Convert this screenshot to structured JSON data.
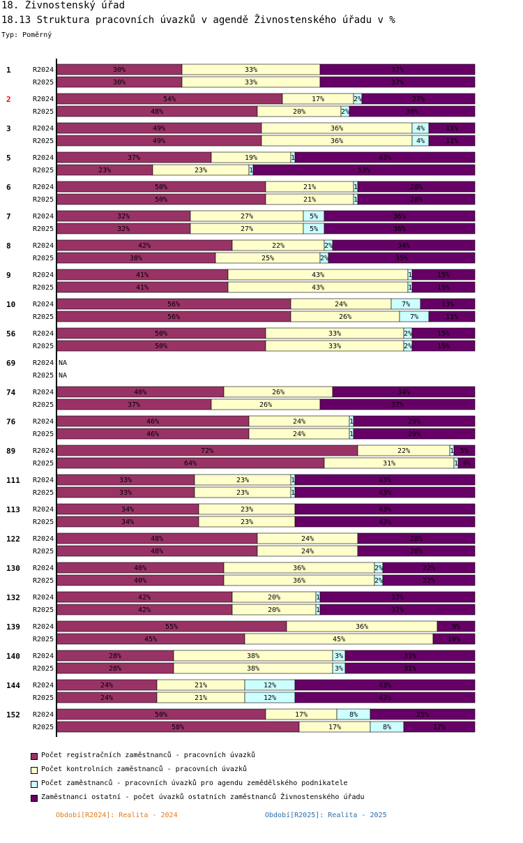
{
  "header": {
    "title": "18. Živnostenský úřad",
    "subtitle": "18.13 Struktura pracovních úvazků v agendě Živnostenského úřadu v %",
    "type_label": "Typ: Poměrný"
  },
  "colors": {
    "registracni": "#993366",
    "kontrolni": "#ffffcc",
    "zemedelsky": "#ccffff",
    "ostatni": "#660066",
    "highlight_group": "#ff0000",
    "period1": "#e07b1a",
    "period2": "#2a6ea8"
  },
  "legend": [
    {
      "label": "Počet registračních zaměstnanců - pracovních úvazků"
    },
    {
      "label": "Počet kontrolních zaměstnanců - pracovních úvazků"
    },
    {
      "label": "Počet zaměstnanců - pracovních úvazků pro agendu zemědělského podnikatele"
    },
    {
      "label": "Zaměstnanci ostatní - počet úvazků ostatních zaměstnanců Živnostenského úřadu"
    }
  ],
  "periods": {
    "p1": "Období[R2024]: Realita - 2024",
    "p2": "Období[R2025]: Realita - 2025"
  },
  "chart_data": {
    "type": "bar",
    "orientation": "horizontal",
    "stacked": "percent",
    "title": "18.13 Struktura pracovních úvazků v agendě Živnostenského úřadu v %",
    "xlim": [
      0,
      100
    ],
    "series_names": [
      "Počet registračních zaměstnanců - pracovních úvazků",
      "Počet kontrolních zaměstnanců - pracovních úvazků",
      "Počet zaměstnanců - pracovních úvazků pro agendu zemědělského podnikatele",
      "Zaměstnanci ostatní - počet úvazků ostatních zaměstnanců Živnostenského úřadu"
    ],
    "na_label": "NA",
    "groups": [
      {
        "id": "1",
        "highlight": false,
        "rows": [
          {
            "period": "R2024",
            "values": [
              30,
              33,
              0,
              37
            ]
          },
          {
            "period": "R2025",
            "values": [
              30,
              33,
              0,
              37
            ]
          }
        ]
      },
      {
        "id": "2",
        "highlight": true,
        "rows": [
          {
            "period": "R2024",
            "values": [
              54,
              17,
              2,
              27
            ]
          },
          {
            "period": "R2025",
            "values": [
              48,
              20,
              2,
              30
            ]
          }
        ]
      },
      {
        "id": "3",
        "highlight": false,
        "rows": [
          {
            "period": "R2024",
            "values": [
              49,
              36,
              4,
              11
            ]
          },
          {
            "period": "R2025",
            "values": [
              49,
              36,
              4,
              11
            ]
          }
        ]
      },
      {
        "id": "5",
        "highlight": false,
        "rows": [
          {
            "period": "R2024",
            "values": [
              37,
              19,
              1,
              43
            ]
          },
          {
            "period": "R2025",
            "values": [
              23,
              23,
              1,
              53
            ]
          }
        ]
      },
      {
        "id": "6",
        "highlight": false,
        "rows": [
          {
            "period": "R2024",
            "values": [
              50,
              21,
              1,
              28
            ]
          },
          {
            "period": "R2025",
            "values": [
              50,
              21,
              1,
              28
            ]
          }
        ]
      },
      {
        "id": "7",
        "highlight": false,
        "rows": [
          {
            "period": "R2024",
            "values": [
              32,
              27,
              5,
              36
            ]
          },
          {
            "period": "R2025",
            "values": [
              32,
              27,
              5,
              36
            ]
          }
        ]
      },
      {
        "id": "8",
        "highlight": false,
        "rows": [
          {
            "period": "R2024",
            "values": [
              42,
              22,
              2,
              34
            ]
          },
          {
            "period": "R2025",
            "values": [
              38,
              25,
              2,
              35
            ]
          }
        ]
      },
      {
        "id": "9",
        "highlight": false,
        "rows": [
          {
            "period": "R2024",
            "values": [
              41,
              43,
              1,
              15
            ]
          },
          {
            "period": "R2025",
            "values": [
              41,
              43,
              1,
              15
            ]
          }
        ]
      },
      {
        "id": "10",
        "highlight": false,
        "rows": [
          {
            "period": "R2024",
            "values": [
              56,
              24,
              7,
              13
            ]
          },
          {
            "period": "R2025",
            "values": [
              56,
              26,
              7,
              11
            ]
          }
        ]
      },
      {
        "id": "56",
        "highlight": false,
        "rows": [
          {
            "period": "R2024",
            "values": [
              50,
              33,
              2,
              15
            ]
          },
          {
            "period": "R2025",
            "values": [
              50,
              33,
              2,
              15
            ]
          }
        ]
      },
      {
        "id": "69",
        "highlight": false,
        "rows": [
          {
            "period": "R2024",
            "values": null
          },
          {
            "period": "R2025",
            "values": null
          }
        ]
      },
      {
        "id": "74",
        "highlight": false,
        "rows": [
          {
            "period": "R2024",
            "values": [
              40,
              26,
              0,
              34
            ]
          },
          {
            "period": "R2025",
            "values": [
              37,
              26,
              0,
              37
            ]
          }
        ]
      },
      {
        "id": "76",
        "highlight": false,
        "rows": [
          {
            "period": "R2024",
            "values": [
              46,
              24,
              1,
              29
            ]
          },
          {
            "period": "R2025",
            "values": [
              46,
              24,
              1,
              29
            ]
          }
        ]
      },
      {
        "id": "89",
        "highlight": false,
        "rows": [
          {
            "period": "R2024",
            "values": [
              72,
              22,
              1,
              5
            ]
          },
          {
            "period": "R2025",
            "values": [
              64,
              31,
              1,
              4
            ]
          }
        ]
      },
      {
        "id": "111",
        "highlight": false,
        "rows": [
          {
            "period": "R2024",
            "values": [
              33,
              23,
              1,
              43
            ]
          },
          {
            "period": "R2025",
            "values": [
              33,
              23,
              1,
              43
            ]
          }
        ]
      },
      {
        "id": "113",
        "highlight": false,
        "rows": [
          {
            "period": "R2024",
            "values": [
              34,
              23,
              0,
              43
            ]
          },
          {
            "period": "R2025",
            "values": [
              34,
              23,
              0,
              43
            ]
          }
        ]
      },
      {
        "id": "122",
        "highlight": false,
        "rows": [
          {
            "period": "R2024",
            "values": [
              48,
              24,
              0,
              28
            ]
          },
          {
            "period": "R2025",
            "values": [
              48,
              24,
              0,
              28
            ]
          }
        ]
      },
      {
        "id": "130",
        "highlight": false,
        "rows": [
          {
            "period": "R2024",
            "values": [
              40,
              36,
              2,
              22
            ]
          },
          {
            "period": "R2025",
            "values": [
              40,
              36,
              2,
              22
            ]
          }
        ]
      },
      {
        "id": "132",
        "highlight": false,
        "rows": [
          {
            "period": "R2024",
            "values": [
              42,
              20,
              1,
              37
            ]
          },
          {
            "period": "R2025",
            "values": [
              42,
              20,
              1,
              37
            ]
          }
        ]
      },
      {
        "id": "139",
        "highlight": false,
        "rows": [
          {
            "period": "R2024",
            "values": [
              55,
              36,
              0,
              9
            ]
          },
          {
            "period": "R2025",
            "values": [
              45,
              45,
              0,
              10
            ]
          }
        ]
      },
      {
        "id": "140",
        "highlight": false,
        "rows": [
          {
            "period": "R2024",
            "values": [
              28,
              38,
              3,
              31
            ]
          },
          {
            "period": "R2025",
            "values": [
              28,
              38,
              3,
              31
            ]
          }
        ]
      },
      {
        "id": "144",
        "highlight": false,
        "rows": [
          {
            "period": "R2024",
            "values": [
              24,
              21,
              12,
              43
            ]
          },
          {
            "period": "R2025",
            "values": [
              24,
              21,
              12,
              43
            ]
          }
        ]
      },
      {
        "id": "152",
        "highlight": false,
        "rows": [
          {
            "period": "R2024",
            "values": [
              50,
              17,
              8,
              25
            ]
          },
          {
            "period": "R2025",
            "values": [
              58,
              17,
              8,
              17
            ]
          }
        ]
      }
    ]
  }
}
